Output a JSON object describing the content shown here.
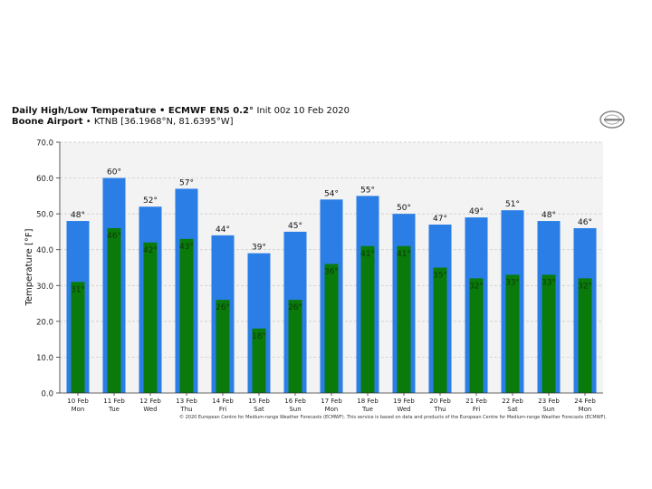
{
  "header": {
    "title_bold": "Daily High/Low Temperature • ECMWF ENS 0.2°",
    "title_init": "Init 00z 10 Feb 2020",
    "location_bold": "Boone Airport",
    "location_rest": "• KTNB [36.1968°N, 81.6395°W]"
  },
  "logo": {
    "icon": "ecmwf-logo-icon"
  },
  "footer": {
    "text": "© 2020 European Centre for Medium-range Weather Forecasts (ECMWF). This service is based on data and products of the European Centre for Medium-range Weather Forecasts (ECMWF)."
  },
  "colors": {
    "high": "#2a7ee6",
    "low": "#0a7a0a",
    "plot_bg": "#f3f3f3"
  },
  "chart_data": {
    "type": "bar",
    "ylabel": "Temperature [°F]",
    "ylim": [
      0,
      70
    ],
    "yticks": [
      "0.0",
      "10.0",
      "20.0",
      "30.0",
      "40.0",
      "50.0",
      "60.0",
      "70.0"
    ],
    "grid": true,
    "categories": [
      {
        "date": "10 Feb",
        "day": "Mon"
      },
      {
        "date": "11 Feb",
        "day": "Tue"
      },
      {
        "date": "12 Feb",
        "day": "Wed"
      },
      {
        "date": "13 Feb",
        "day": "Thu"
      },
      {
        "date": "14 Feb",
        "day": "Fri"
      },
      {
        "date": "15 Feb",
        "day": "Sat"
      },
      {
        "date": "16 Feb",
        "day": "Sun"
      },
      {
        "date": "17 Feb",
        "day": "Mon"
      },
      {
        "date": "18 Feb",
        "day": "Tue"
      },
      {
        "date": "19 Feb",
        "day": "Wed"
      },
      {
        "date": "20 Feb",
        "day": "Thu"
      },
      {
        "date": "21 Feb",
        "day": "Fri"
      },
      {
        "date": "22 Feb",
        "day": "Sat"
      },
      {
        "date": "23 Feb",
        "day": "Sun"
      },
      {
        "date": "24 Feb",
        "day": "Mon"
      }
    ],
    "series": [
      {
        "name": "High",
        "values": [
          48,
          60,
          52,
          57,
          44,
          39,
          45,
          54,
          55,
          50,
          47,
          49,
          51,
          48,
          46
        ],
        "labels": [
          "48°",
          "60°",
          "52°",
          "57°",
          "44°",
          "39°",
          "45°",
          "54°",
          "55°",
          "50°",
          "47°",
          "49°",
          "51°",
          "48°",
          "46°"
        ]
      },
      {
        "name": "Low",
        "values": [
          31,
          46,
          42,
          43,
          26,
          18,
          26,
          36,
          41,
          41,
          35,
          32,
          33,
          33,
          32
        ],
        "labels": [
          "31°",
          "46°",
          "42°",
          "43°",
          "26°",
          "18°",
          "26°",
          "36°",
          "41°",
          "41°",
          "35°",
          "32°",
          "33°",
          "33°",
          "32°"
        ]
      }
    ]
  }
}
